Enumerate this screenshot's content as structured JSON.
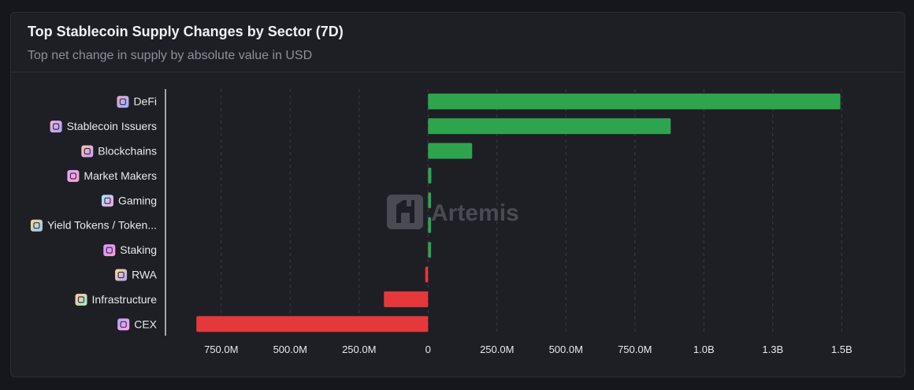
{
  "header": {
    "title": "Top Stablecoin Supply Changes by Sector (7D)",
    "subtitle": "Top net change in supply by absolute value in USD"
  },
  "watermark": {
    "text": "Artemis"
  },
  "colors": {
    "positive": "#2ea44f",
    "negative": "#e5383b",
    "grid": "#3a3b42",
    "axis": "#d0d0d6"
  },
  "chart_data": {
    "type": "bar",
    "orientation": "horizontal",
    "categories": [
      "DeFi",
      "Stablecoin Issuers",
      "Blockchains",
      "Market Makers",
      "Gaming",
      "Yield Tokens / Token...",
      "Staking",
      "RWA",
      "Infrastructure",
      "CEX"
    ],
    "category_icons": [
      "defi-icon",
      "stablecoin-issuers-icon",
      "blockchains-icon",
      "market-makers-icon",
      "gaming-icon",
      "yield-tokens-icon",
      "staking-icon",
      "rwa-icon",
      "infrastructure-icon",
      "cex-icon"
    ],
    "values": [
      1495000000,
      880000000,
      160000000,
      12000000,
      11000000,
      11000000,
      11000000,
      -10000000,
      -160000000,
      -840000000
    ],
    "xlim": [
      -875000000,
      1625000000
    ],
    "ticks": [
      {
        "value": -750000000,
        "label": "750.0M"
      },
      {
        "value": -500000000,
        "label": "500.0M"
      },
      {
        "value": -250000000,
        "label": "250.0M"
      },
      {
        "value": 0,
        "label": "0"
      },
      {
        "value": 250000000,
        "label": "250.0M"
      },
      {
        "value": 500000000,
        "label": "500.0M"
      },
      {
        "value": 750000000,
        "label": "750.0M"
      },
      {
        "value": 1000000000,
        "label": "1.0B"
      },
      {
        "value": 1250000000,
        "label": "1.3B"
      },
      {
        "value": 1500000000,
        "label": "1.5B"
      }
    ],
    "grid": true,
    "legend": "none"
  }
}
